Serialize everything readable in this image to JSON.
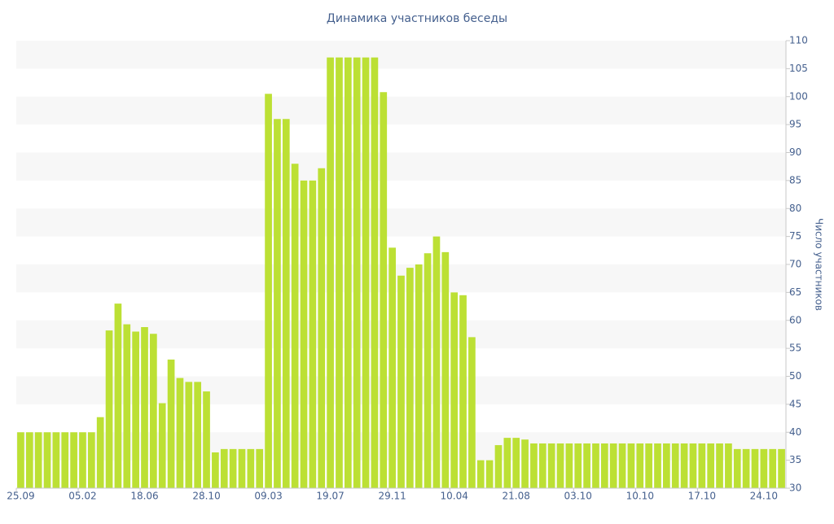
{
  "chart_data": {
    "type": "bar",
    "title": "Динамика участников беседы",
    "y_axis_label": "Число участников",
    "categories": [
      "25.09",
      null,
      null,
      null,
      null,
      null,
      null,
      "05.02",
      null,
      null,
      null,
      null,
      null,
      null,
      "18.06",
      null,
      null,
      null,
      null,
      null,
      null,
      "28.10",
      null,
      null,
      null,
      null,
      null,
      null,
      "09.03",
      null,
      null,
      null,
      null,
      null,
      null,
      "19.07",
      null,
      null,
      null,
      null,
      null,
      null,
      "29.11",
      null,
      null,
      null,
      null,
      null,
      null,
      "10.04",
      null,
      null,
      null,
      null,
      null,
      null,
      "21.08",
      null,
      null,
      null,
      null,
      null,
      null,
      "03.10",
      null,
      null,
      null,
      null,
      null,
      null,
      "10.10",
      null,
      null,
      null,
      null,
      null,
      null,
      "17.10",
      null,
      null,
      null,
      null,
      null,
      null,
      "24.10",
      null,
      null
    ],
    "values": [
      40,
      40,
      40,
      40,
      40,
      40,
      40,
      40,
      40,
      42.7,
      58.2,
      63,
      59.3,
      58,
      58.8,
      57.6,
      45.2,
      53,
      49.7,
      49,
      49,
      47.3,
      36.4,
      37,
      37,
      37,
      37,
      37,
      100.5,
      96,
      96,
      88,
      85,
      85,
      87.2,
      107,
      107,
      107,
      107,
      107,
      107,
      100.8,
      73,
      68,
      69.4,
      70,
      72,
      75,
      72.2,
      65,
      64.5,
      57,
      35,
      35,
      37.7,
      39,
      39,
      38.7,
      38,
      38,
      38,
      38,
      38,
      38,
      38,
      38,
      38,
      38,
      38,
      38,
      38,
      38,
      38,
      38,
      38,
      38,
      38,
      38,
      38,
      38,
      38,
      37,
      37,
      37,
      37,
      37,
      37
    ],
    "color": "#bce034",
    "ylim": [
      30,
      110
    ],
    "yticks": [
      30,
      35,
      40,
      45,
      50,
      55,
      60,
      65,
      70,
      75,
      80,
      85,
      90,
      95,
      100,
      105,
      110
    ],
    "grid": "bands",
    "y_axis_side": "right"
  }
}
